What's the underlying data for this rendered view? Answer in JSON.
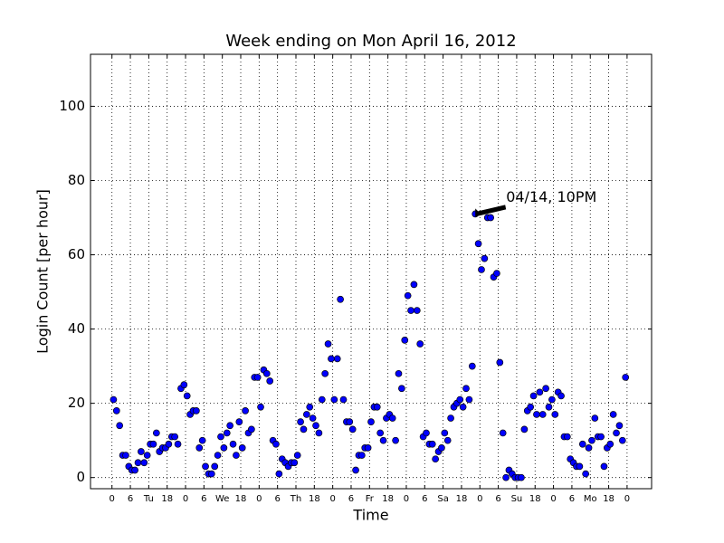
{
  "chart_data": {
    "type": "scatter",
    "title": "Week ending on Mon April 16, 2012",
    "xlabel": "Time",
    "ylabel": "Login Count [per hour]",
    "annotation": "04/14, 10PM",
    "color": "#0000ff",
    "grid": true,
    "xlim": [
      -7,
      176
    ],
    "ylim": [
      -3,
      114
    ],
    "yticks": [
      0,
      20,
      40,
      60,
      80,
      100
    ],
    "xticks": [
      0,
      6,
      {
        "value": 12,
        "label": "Tu"
      },
      18,
      {
        "value": 24,
        "label": "0"
      },
      {
        "value": 30,
        "label": "6"
      },
      {
        "value": 36,
        "label": "We"
      },
      {
        "value": 42,
        "label": "18"
      },
      {
        "value": 48,
        "label": "0"
      },
      {
        "value": 54,
        "label": "6"
      },
      {
        "value": 60,
        "label": "Th"
      },
      {
        "value": 66,
        "label": "18"
      },
      {
        "value": 72,
        "label": "0"
      },
      {
        "value": 78,
        "label": "6"
      },
      {
        "value": 84,
        "label": "Fr"
      },
      {
        "value": 90,
        "label": "18"
      },
      {
        "value": 96,
        "label": "0"
      },
      {
        "value": 102,
        "label": "6"
      },
      {
        "value": 108,
        "label": "Sa"
      },
      {
        "value": 114,
        "label": "18"
      },
      {
        "value": 120,
        "label": "0"
      },
      {
        "value": 126,
        "label": "6"
      },
      {
        "value": 132,
        "label": "Su"
      },
      {
        "value": 138,
        "label": "18"
      },
      {
        "value": 144,
        "label": "0"
      },
      {
        "value": 150,
        "label": "6"
      },
      {
        "value": 156,
        "label": "Mo"
      },
      {
        "value": 162,
        "label": "18"
      },
      {
        "value": 168,
        "label": "0"
      }
    ],
    "x": [
      0.5,
      1.5,
      2.5,
      3.5,
      4.5,
      5.5,
      6.5,
      7.5,
      8.5,
      9.5,
      10.5,
      11.5,
      12.5,
      13.5,
      14.5,
      15.5,
      16.5,
      17.5,
      18.5,
      19.5,
      20.5,
      21.5,
      22.5,
      23.5,
      24.5,
      25.5,
      26.5,
      27.5,
      28.5,
      29.5,
      30.5,
      31.5,
      32.5,
      33.5,
      34.5,
      35.5,
      36.5,
      37.5,
      38.5,
      39.5,
      40.5,
      41.5,
      42.5,
      43.5,
      44.5,
      45.5,
      46.5,
      47.5,
      48.5,
      49.5,
      50.5,
      51.5,
      52.5,
      53.5,
      54.5,
      55.5,
      56.5,
      57.5,
      58.5,
      59.5,
      60.5,
      61.5,
      62.5,
      63.5,
      64.5,
      65.5,
      66.5,
      67.5,
      68.5,
      69.5,
      70.5,
      71.5,
      72.5,
      73.5,
      74.5,
      75.5,
      76.5,
      77.5,
      78.5,
      79.5,
      80.5,
      81.5,
      82.5,
      83.5,
      84.5,
      85.5,
      86.5,
      87.5,
      88.5,
      89.5,
      90.5,
      91.5,
      92.5,
      93.5,
      94.5,
      95.5,
      96.5,
      97.5,
      98.5,
      99.5,
      100.5,
      101.5,
      102.5,
      103.5,
      104.5,
      105.5,
      106.5,
      107.5,
      108.5,
      109.5,
      110.5,
      111.5,
      112.5,
      113.5,
      114.5,
      115.5,
      116.5,
      117.5,
      118.5,
      119.5,
      120.5,
      121.5,
      122.5,
      123.5,
      124.5,
      125.5,
      126.5,
      127.5,
      128.5,
      129.5,
      130.5,
      131.5,
      132.5,
      133.5,
      134.5,
      135.5,
      136.5,
      137.5,
      138.5,
      139.5,
      140.5,
      141.5,
      142.5,
      143.5,
      144.5,
      145.5,
      146.5,
      147.5,
      148.5,
      149.5,
      150.5,
      151.5,
      152.5,
      153.5,
      154.5,
      155.5,
      156.5,
      157.5,
      158.5,
      159.5,
      160.5,
      161.5,
      162.5,
      163.5,
      164.5,
      165.5,
      166.5,
      167.5
    ],
    "values": [
      21,
      18,
      14,
      6,
      6,
      3,
      2,
      2,
      4,
      7,
      4,
      6,
      9,
      9,
      12,
      7,
      8,
      8,
      9,
      11,
      11,
      9,
      24,
      25,
      22,
      17,
      18,
      18,
      8,
      10,
      3,
      1,
      1,
      3,
      6,
      11,
      8,
      12,
      14,
      9,
      6,
      15,
      8,
      18,
      12,
      13,
      27,
      27,
      19,
      29,
      28,
      26,
      10,
      9,
      1,
      5,
      4,
      3,
      4,
      4,
      6,
      15,
      13,
      17,
      19,
      16,
      14,
      12,
      21,
      28,
      36,
      32,
      21,
      32,
      48,
      21,
      15,
      15,
      13,
      2,
      6,
      6,
      8,
      8,
      15,
      19,
      19,
      12,
      10,
      16,
      17,
      16,
      10,
      28,
      24,
      37,
      49,
      45,
      52,
      45,
      36,
      11,
      12,
      9,
      9,
      5,
      7,
      8,
      12,
      10,
      16,
      19,
      20,
      21,
      19,
      24,
      21,
      30,
      71,
      63,
      56,
      59,
      70,
      70,
      54,
      55,
      31,
      12,
      0,
      2,
      1,
      0,
      0,
      0,
      13,
      18,
      19,
      22,
      17,
      23,
      17,
      24,
      19,
      21,
      17,
      23,
      22,
      11,
      11,
      5,
      4,
      3,
      3,
      9,
      1,
      8,
      10,
      16,
      11,
      11,
      3,
      8,
      9,
      17,
      12,
      14,
      10,
      27
    ]
  }
}
